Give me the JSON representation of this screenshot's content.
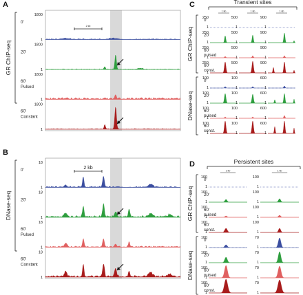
{
  "panels": {
    "A": {
      "letter": "A",
      "side_label": "GR ChIP-seq",
      "scale_label": "2 kb",
      "rows": [
        {
          "label": "0'",
          "y_top": "1800",
          "y_bottom": "1",
          "color": "#3b4ea0"
        },
        {
          "label": "20'",
          "y_top": "1800",
          "y_bottom": "1",
          "color": "#2e9e3e"
        },
        {
          "label": "60'\nPulsed",
          "y_top": "1800",
          "y_bottom": "1",
          "color": "#e06060"
        },
        {
          "label": "60'\nConstant",
          "y_top": "1800",
          "y_bottom": "1",
          "color": "#a81c1c"
        }
      ]
    },
    "B": {
      "letter": "B",
      "side_label": "DNase-seq",
      "scale_label": "2 kb",
      "rows": [
        {
          "label": "0'",
          "y_top": "18",
          "y_bottom": "1",
          "color": "#3b4ea0"
        },
        {
          "label": "20'",
          "y_top": "18",
          "y_bottom": "1",
          "color": "#2e9e3e"
        },
        {
          "label": "60'\nPulsed",
          "y_top": "18",
          "y_bottom": "1",
          "color": "#e06060"
        },
        {
          "label": "60'\nConstant",
          "y_top": "18",
          "y_bottom": "1",
          "color": "#a81c1c"
        }
      ]
    },
    "C": {
      "letter": "C",
      "title": "Transient sites",
      "scale_labels": [
        "1 kb",
        "1 kb",
        "1 kb"
      ],
      "chip_label": "GR ChIP-seq",
      "dnase_label": "DNase-seq",
      "rows": [
        "0'",
        "20'",
        "60'\npulsed",
        "60'\nconst.",
        "0'",
        "20'",
        "60'\npulsed",
        "60'\nconst."
      ],
      "y_labels_col1": [
        "250",
        "1",
        "250",
        "1",
        "250",
        "1",
        "250",
        "1",
        "100",
        "1",
        "100",
        "1",
        "100",
        "1",
        "100",
        "1"
      ],
      "y_labels_col2": [
        "500",
        "1",
        "500",
        "1",
        "500",
        "1",
        "500",
        "1",
        "100",
        "1",
        "100",
        "1",
        "100",
        "1",
        "100",
        "1"
      ],
      "y_labels_col3": [
        "900",
        "1",
        "900",
        "1",
        "900",
        "1",
        "900",
        "1",
        "600",
        "1",
        "600",
        "1",
        "600",
        "1",
        "600",
        "1"
      ]
    },
    "D": {
      "letter": "D",
      "title": "Persistent sites",
      "scale_labels": [
        "1 kb",
        "1 kb"
      ],
      "chip_label": "GR ChIP-seq",
      "dnase_label": "DNase-seq",
      "rows": [
        "0'",
        "20'",
        "60'\npulsed",
        "60'\nconst.",
        "0'",
        "20'",
        "60'\npulsed",
        "60'\nconst."
      ],
      "y_labels_col1": [
        "100",
        "1",
        "100",
        "1",
        "100",
        "1",
        "100",
        "1",
        "100",
        "1",
        "100",
        "1",
        "100",
        "1",
        "100",
        "1"
      ],
      "y_labels_col2": [
        "100",
        "1",
        "100",
        "1",
        "100",
        "1",
        "100",
        "1",
        "70",
        "1",
        "70",
        "1",
        "70",
        "1",
        "70",
        "1"
      ]
    }
  },
  "colors": {
    "blue": "#3b4ea0",
    "green": "#2e9e3e",
    "pink": "#e06060",
    "darkred": "#a81c1c",
    "highlight": "#d9d9d9"
  }
}
